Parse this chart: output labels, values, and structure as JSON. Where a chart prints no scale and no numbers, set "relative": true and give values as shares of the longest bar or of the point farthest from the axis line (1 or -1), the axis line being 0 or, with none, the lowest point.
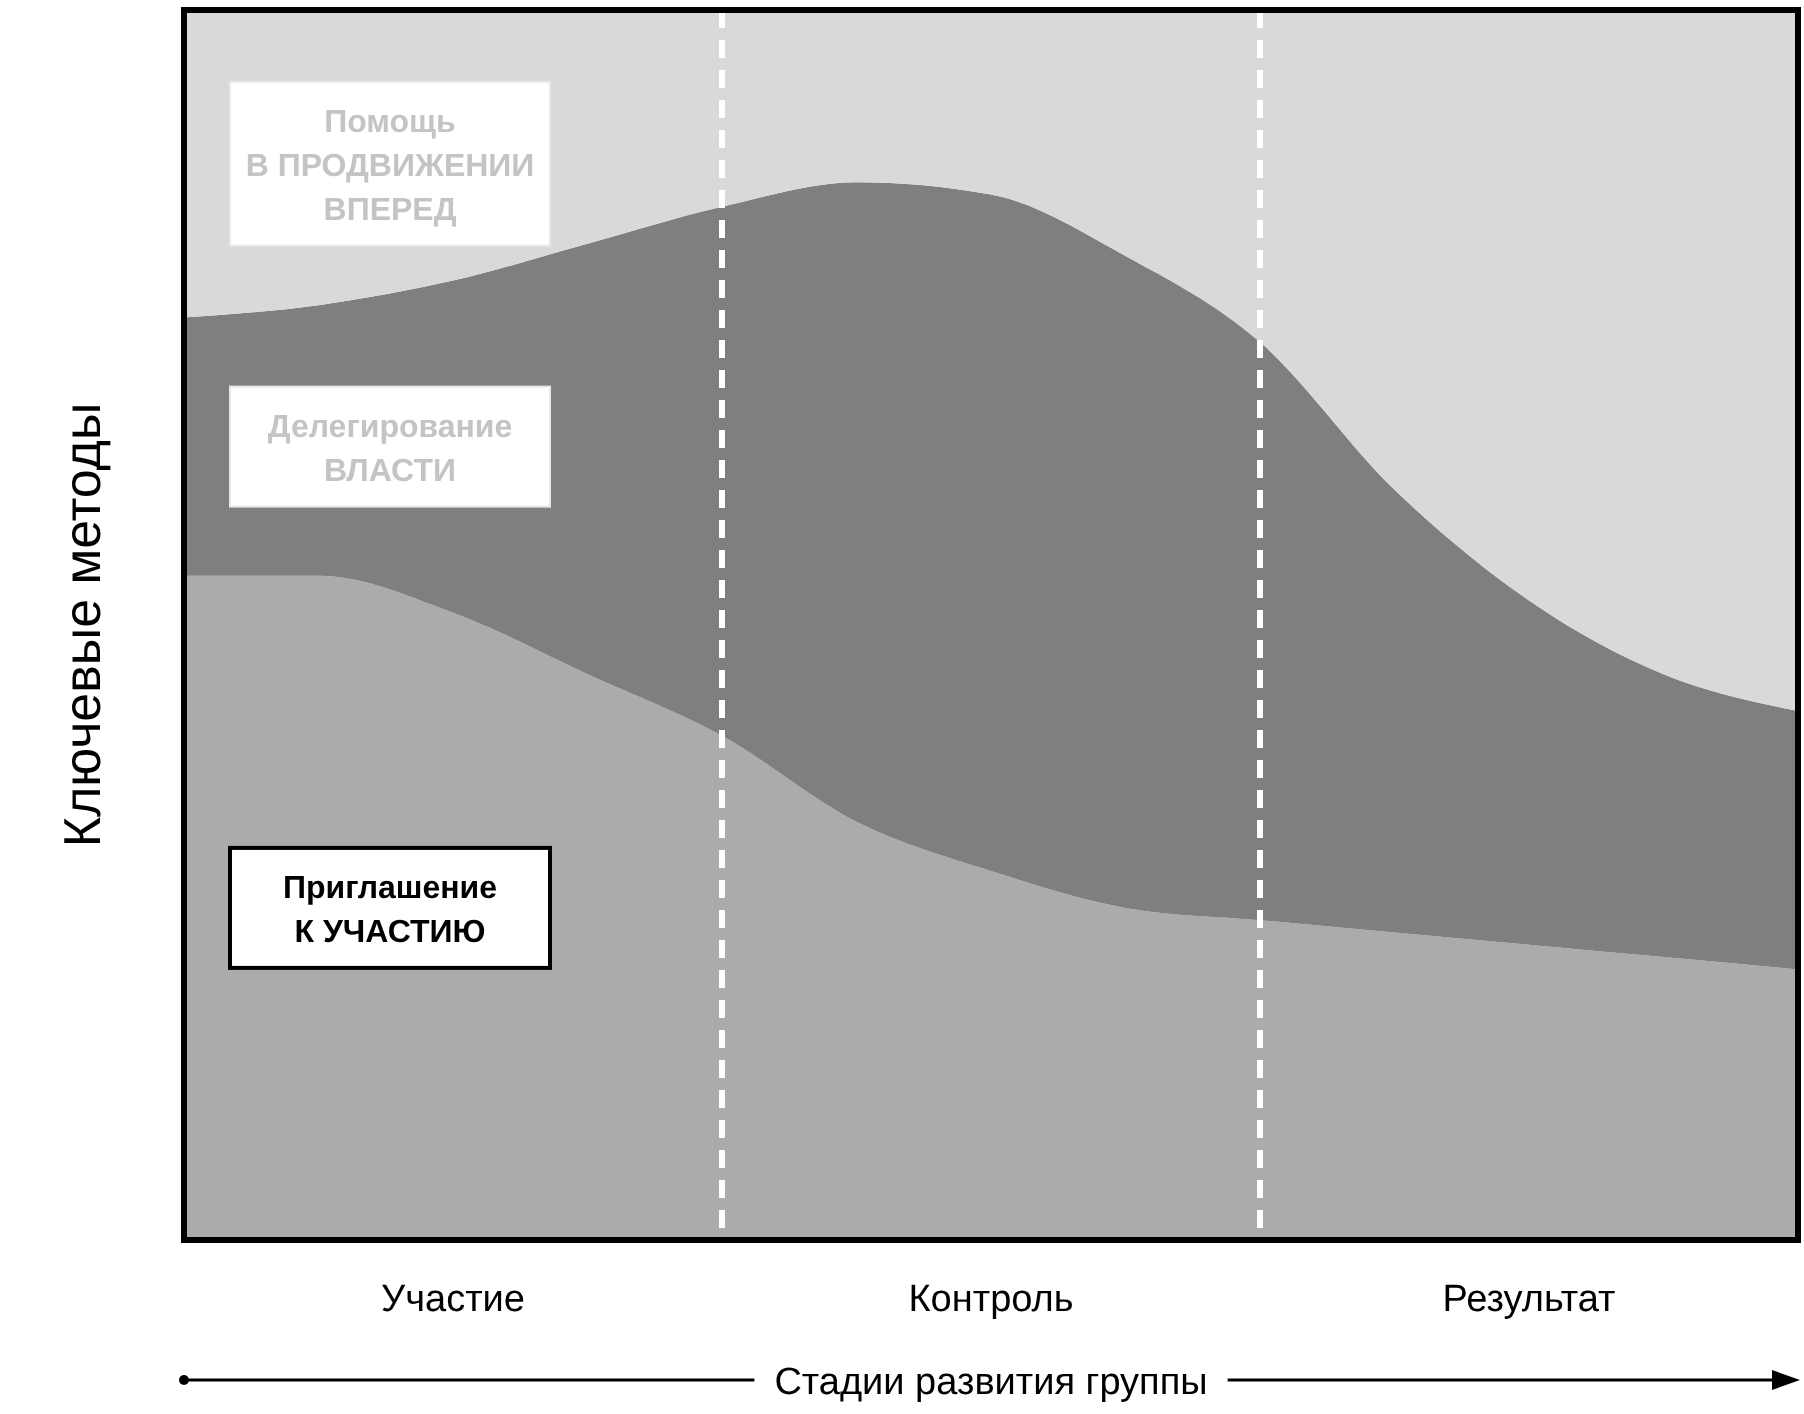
{
  "chart_data": {
    "type": "area",
    "stacked": true,
    "relative": true,
    "xlabel": "Стадии развития группы",
    "ylabel": "Ключевые методы",
    "categories": [
      null,
      null,
      "Участие",
      null,
      null,
      null,
      "Контроль",
      null,
      null,
      null,
      "Результат",
      null,
      null
    ],
    "series": [
      {
        "name": "Приглашение\nК УЧАСТИЮ",
        "color": "#ababab",
        "values": [
          0.54,
          0.54,
          0.51,
          0.46,
          0.41,
          0.34,
          0.3,
          0.27,
          0.26,
          0.25,
          0.24,
          0.23,
          0.22
        ]
      },
      {
        "name": "Делегирование\nВЛАСТИ",
        "color": "#7f7f7f",
        "values": [
          0.21,
          0.22,
          0.27,
          0.35,
          0.43,
          0.52,
          0.55,
          0.53,
          0.47,
          0.36,
          0.28,
          0.23,
          0.21
        ]
      },
      {
        "name": "Помощь\nВ ПРОДВИЖЕНИИ\nВПЕРЕД",
        "color": "#d9d9d9",
        "values": [
          0.25,
          0.24,
          0.22,
          0.19,
          0.16,
          0.14,
          0.15,
          0.2,
          0.27,
          0.39,
          0.48,
          0.54,
          0.57
        ]
      }
    ]
  }
}
